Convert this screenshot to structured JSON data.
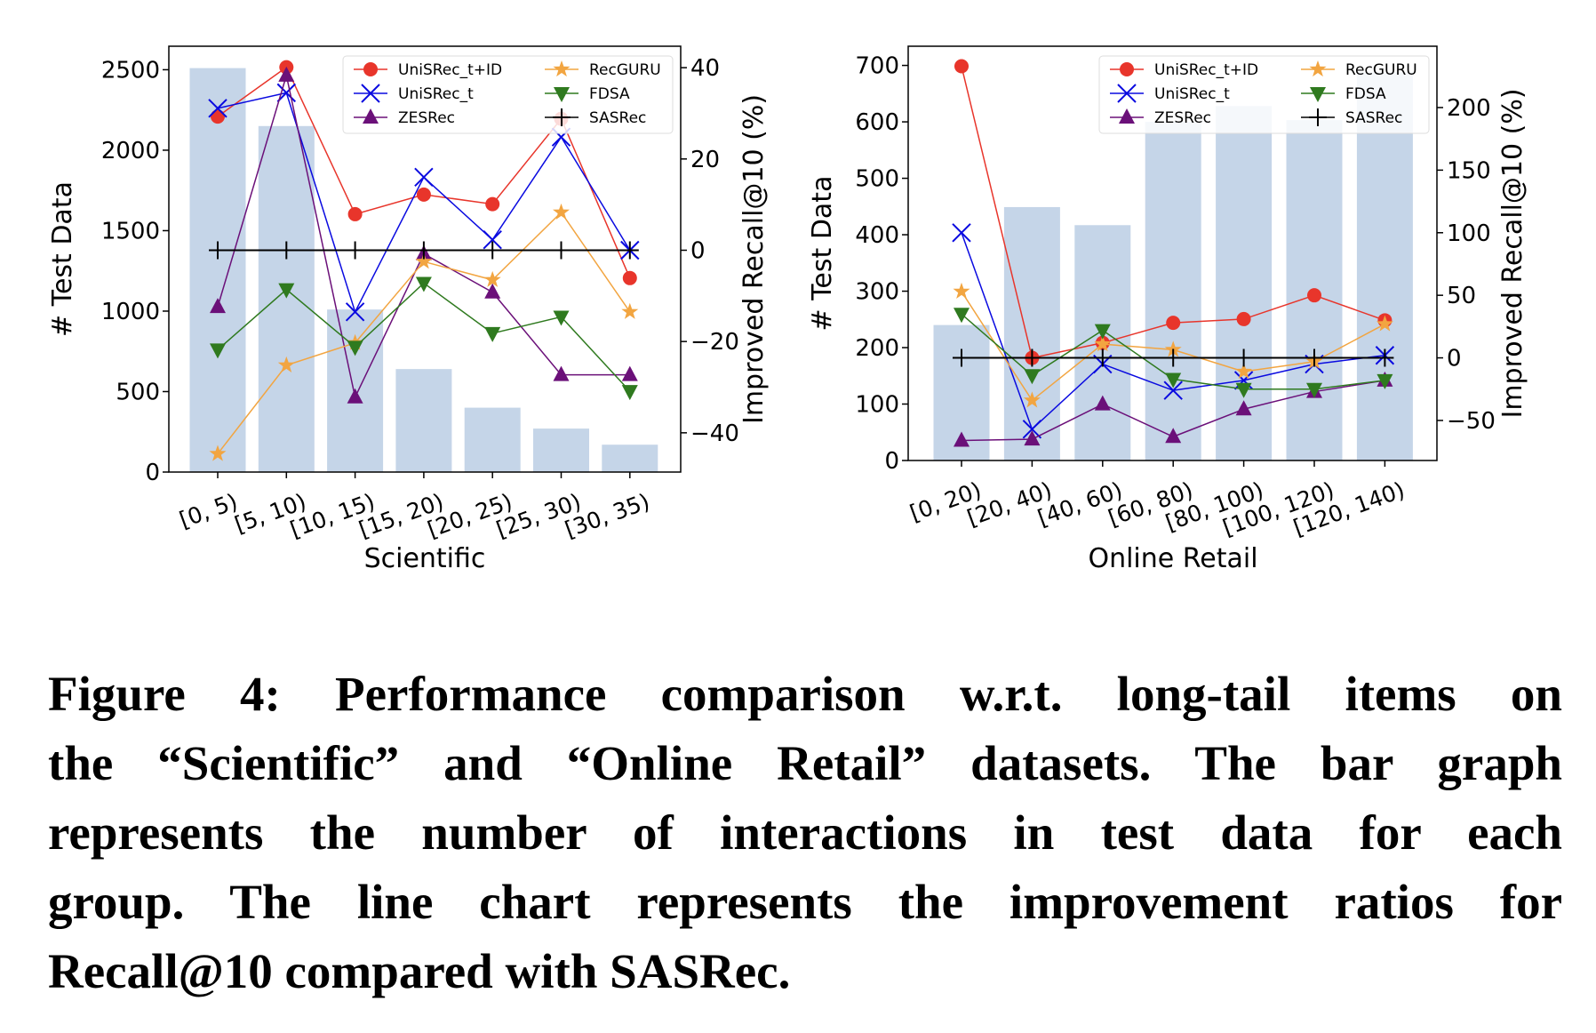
{
  "chart_data": [
    {
      "type": "bar+line",
      "title": "",
      "xlabel": "Scientific",
      "ylabel": "# Test Data",
      "y2label": "Improved Recall@10 (%)",
      "categories": [
        "[0, 5)",
        "[5, 10)",
        "[10, 15)",
        "[15, 20)",
        "[20, 25)",
        "[25, 30)",
        "[30, 35)"
      ],
      "ylim": [
        0,
        2646
      ],
      "y2lim": [
        -48.6,
        44.7
      ],
      "yticks": [
        0,
        500,
        1000,
        1500,
        2000,
        2500
      ],
      "y2ticks": [
        -40,
        -20,
        0,
        20,
        40
      ],
      "y2tick_labels": [
        "−40",
        "−20",
        "0",
        "20",
        "40"
      ],
      "bars": {
        "name": "# Test Data",
        "color": "#c5d5e8",
        "values": [
          2510,
          2150,
          1010,
          640,
          400,
          270,
          170
        ]
      },
      "legend_position": "top-right",
      "series": [
        {
          "name": "UniSRec_t+ID",
          "color": "#e8352b",
          "marker": "circle",
          "values": [
            29.3,
            40.1,
            7.9,
            12.2,
            10.1,
            28.8,
            -6.1
          ]
        },
        {
          "name": "UniSRec_t",
          "color": "#0a0ae0",
          "marker": "x",
          "values": [
            31.1,
            34.5,
            -13.5,
            16.0,
            2.3,
            24.8,
            0.0
          ]
        },
        {
          "name": "ZESRec",
          "color": "#6b1079",
          "marker": "triangle-up",
          "values": [
            -12.4,
            38.3,
            -32.2,
            -0.8,
            -9.2,
            -27.3,
            -27.3
          ]
        },
        {
          "name": "RecGURU",
          "color": "#f2a541",
          "marker": "star",
          "values": [
            -44.6,
            -25.2,
            -20.3,
            -2.5,
            -6.5,
            8.3,
            -13.5
          ]
        },
        {
          "name": "FDSA",
          "color": "#2f7a1f",
          "marker": "triangle-down",
          "values": [
            -21.8,
            -8.6,
            -21.2,
            -7.2,
            -18.2,
            -14.6,
            -30.9
          ]
        },
        {
          "name": "SASRec",
          "color": "#000000",
          "marker": "plus",
          "values": [
            0,
            0,
            0,
            0,
            0,
            0,
            0
          ]
        }
      ]
    },
    {
      "type": "bar+line",
      "title": "",
      "xlabel": "Online Retail",
      "ylabel": "# Test Data",
      "y2label": "Improved Recall@10 (%)",
      "categories": [
        "[0, 20)",
        "[20, 40)",
        "[40, 60)",
        "[60, 80)",
        "[80, 100)",
        "[100, 120)",
        "[120, 140)"
      ],
      "ylim": [
        0,
        734
      ],
      "y2lim": [
        -82,
        249
      ],
      "yticks": [
        0,
        100,
        200,
        300,
        400,
        500,
        600,
        700
      ],
      "y2ticks": [
        -50,
        0,
        50,
        100,
        150,
        200
      ],
      "y2tick_labels": [
        "−50",
        "0",
        "50",
        "100",
        "150",
        "200"
      ],
      "bars": {
        "name": "# Test Data",
        "color": "#c5d5e8",
        "values": [
          240,
          449,
          417,
          600,
          628,
          603,
          688
        ]
      },
      "legend_position": "top-right",
      "series": [
        {
          "name": "UniSRec_t+ID",
          "color": "#e8352b",
          "marker": "circle",
          "values": [
            233,
            0,
            12,
            28,
            31,
            50,
            30
          ]
        },
        {
          "name": "UniSRec_t",
          "color": "#0a0ae0",
          "marker": "x",
          "values": [
            100,
            -57,
            -5,
            -26,
            -18,
            -5,
            2
          ]
        },
        {
          "name": "ZESRec",
          "color": "#6b1079",
          "marker": "triangle-up",
          "values": [
            -66,
            -65,
            -37,
            -63,
            -41,
            -27,
            -18
          ]
        },
        {
          "name": "RecGURU",
          "color": "#f2a541",
          "marker": "star",
          "values": [
            53,
            -34,
            11,
            6.5,
            -11,
            -3,
            27
          ]
        },
        {
          "name": "FDSA",
          "color": "#2f7a1f",
          "marker": "triangle-down",
          "values": [
            35,
            -14,
            22,
            -17,
            -25,
            -25,
            -18
          ]
        },
        {
          "name": "SASRec",
          "color": "#000000",
          "marker": "plus",
          "values": [
            0,
            0,
            0,
            0,
            0,
            0,
            0
          ]
        }
      ]
    }
  ],
  "caption": {
    "lines": [
      "Figure 4: Performance comparison w.r.t. long-tail items on",
      "the “Scientific” and “Online Retail” datasets. The bar graph",
      "represents the number of interactions in test data for each",
      "group. The line chart represents the improvement ratios for",
      "Recall@10 compared with SASRec."
    ]
  }
}
